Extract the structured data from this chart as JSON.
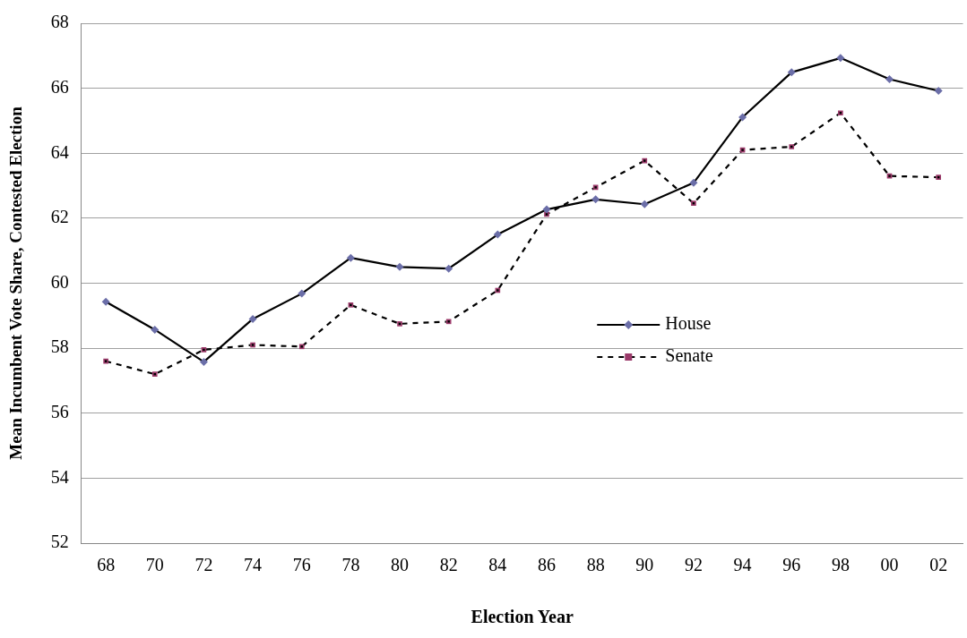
{
  "chart_data": {
    "type": "line",
    "xlabel": "Election Year",
    "ylabel": "Mean Incumbent Vote Share, Contested Election",
    "categories": [
      "68",
      "70",
      "72",
      "74",
      "76",
      "78",
      "80",
      "82",
      "84",
      "86",
      "88",
      "90",
      "92",
      "94",
      "96",
      "98",
      "00",
      "02"
    ],
    "series": [
      {
        "name": "House",
        "color": "#6b6ea8",
        "marker": "diamond",
        "line_style": "solid",
        "values": [
          59.43,
          58.57,
          57.58,
          58.9,
          59.68,
          60.78,
          60.5,
          60.45,
          61.5,
          62.27,
          62.58,
          62.43,
          63.09,
          65.11,
          66.49,
          66.93,
          66.28,
          65.92
        ]
      },
      {
        "name": "Senate",
        "color": "#9b3a6a",
        "marker": "square",
        "line_style": "dashed",
        "values": [
          57.6,
          57.2,
          57.95,
          58.1,
          58.05,
          59.33,
          58.75,
          58.82,
          59.78,
          62.12,
          62.95,
          63.77,
          62.46,
          64.1,
          64.2,
          65.24,
          63.3,
          63.26
        ]
      }
    ],
    "ylim": [
      52,
      68
    ],
    "yticks": [
      52,
      54,
      56,
      58,
      60,
      62,
      64,
      66,
      68
    ],
    "grid": "y",
    "legend": "right"
  }
}
